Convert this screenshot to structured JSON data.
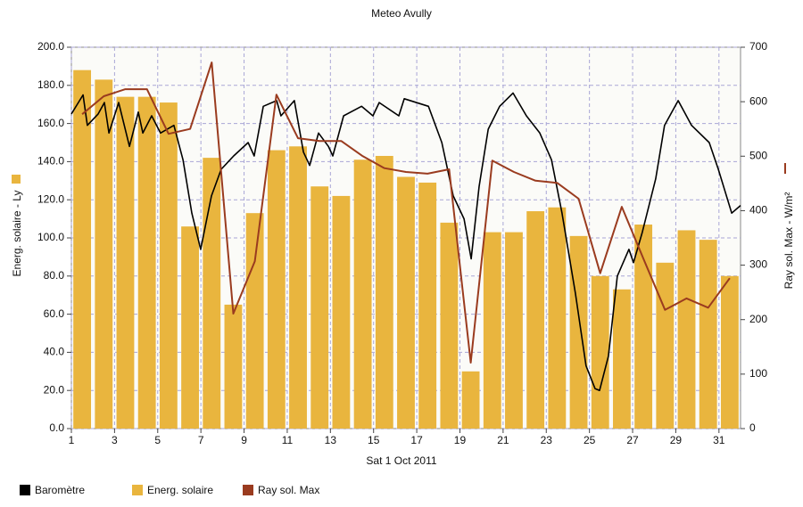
{
  "chart_data": {
    "type": "bar",
    "title": "Meteo  Avully",
    "x_label": "Sat 1 Oct 2011",
    "y_label": "Energ. solaire - Ly",
    "y2_label": "Ray sol. Max - W/m²",
    "xlim": [
      1,
      32
    ],
    "xticks": [
      1,
      3,
      5,
      7,
      9,
      11,
      13,
      15,
      17,
      19,
      21,
      23,
      25,
      27,
      29,
      31
    ],
    "ylim": [
      0,
      200
    ],
    "yticks": [
      {
        "value": 0,
        "label": "0.0"
      },
      {
        "value": 20,
        "label": "20.0"
      },
      {
        "value": 40,
        "label": "40.0"
      },
      {
        "value": 60,
        "label": "60.0"
      },
      {
        "value": 80,
        "label": "80.0"
      },
      {
        "value": 100,
        "label": "100.0"
      },
      {
        "value": 120,
        "label": "120.0"
      },
      {
        "value": 140,
        "label": "140.0"
      },
      {
        "value": 160,
        "label": "160.0"
      },
      {
        "value": 180,
        "label": "180.0"
      },
      {
        "value": 200,
        "label": "200.0"
      }
    ],
    "y2lim": [
      0,
      700
    ],
    "y2ticks": [
      0,
      100,
      200,
      300,
      400,
      500,
      600,
      700
    ],
    "grid": true,
    "series": [
      {
        "name": "Baromètre",
        "type": "line",
        "color": "#000000",
        "x": [
          1.0,
          1.54,
          1.74,
          2.24,
          2.53,
          2.74,
          3.19,
          3.69,
          4.1,
          4.31,
          4.72,
          5.13,
          5.75,
          6.17,
          6.58,
          6.99,
          7.49,
          7.94,
          8.52,
          9.19,
          9.47,
          9.89,
          10.51,
          10.71,
          11.33,
          11.75,
          12.04,
          12.45,
          12.91,
          13.11,
          13.61,
          14.44,
          14.97,
          15.26,
          16.17,
          16.42,
          17.54,
          18.16,
          18.69,
          19.19,
          19.52,
          19.89,
          20.31,
          20.84,
          21.46,
          22.08,
          22.7,
          23.24,
          23.73,
          24.35,
          24.84,
          25.26,
          25.47,
          25.88,
          26.29,
          26.83,
          27.04,
          27.45,
          28.07,
          28.48,
          29.11,
          29.73,
          30.55,
          30.97,
          31.59,
          32.0
        ],
        "values": [
          165,
          175,
          159,
          165,
          171,
          155,
          171,
          148,
          166,
          155,
          164,
          155,
          159,
          141,
          113,
          94,
          122,
          136,
          143,
          150,
          143,
          169,
          172,
          164,
          172,
          145,
          138,
          155,
          148,
          143,
          164,
          169,
          164,
          171,
          164,
          173,
          169,
          150,
          122,
          110,
          89,
          127,
          157,
          169,
          176,
          164,
          155,
          141,
          113,
          71,
          33,
          21,
          20,
          38,
          80,
          94,
          87,
          103,
          131,
          159,
          172,
          159,
          150,
          136,
          113,
          117
        ]
      },
      {
        "name": "Energ. solaire",
        "type": "bar",
        "color": "#e9b53e",
        "x": [
          1.5,
          2.5,
          3.5,
          4.5,
          5.5,
          6.5,
          7.5,
          8.5,
          9.5,
          10.5,
          11.5,
          12.5,
          13.5,
          14.5,
          15.5,
          16.5,
          17.5,
          18.5,
          19.5,
          20.5,
          21.5,
          22.5,
          23.5,
          24.5,
          25.5,
          26.5,
          27.5,
          28.5,
          29.5,
          30.5,
          31.5
        ],
        "values": [
          188,
          183,
          174,
          174,
          171,
          106,
          142,
          65,
          113,
          146,
          148,
          127,
          122,
          141,
          143,
          132,
          129,
          108,
          30,
          103,
          103,
          114,
          116,
          101,
          80,
          73,
          107,
          87,
          104,
          99,
          80
        ]
      },
      {
        "name": "Ray sol. Max",
        "type": "line",
        "axis": "y2",
        "color": "#9a3b1f",
        "x": [
          1.5,
          2.5,
          3.5,
          4.5,
          5.5,
          6.5,
          7.5,
          8.5,
          9.5,
          10.5,
          11.5,
          12.5,
          13.5,
          14.5,
          15.5,
          16.5,
          17.5,
          18.5,
          19.5,
          20.5,
          21.5,
          22.5,
          23.5,
          24.5,
          25.5,
          26.5,
          27.5,
          28.5,
          29.5,
          30.5,
          31.5
        ],
        "values": [
          577,
          610,
          623,
          623,
          541,
          550,
          672,
          211,
          307,
          613,
          533,
          528,
          528,
          500,
          478,
          471,
          468,
          476,
          121,
          492,
          471,
          455,
          451,
          422,
          285,
          407,
          312,
          218,
          239,
          222,
          276
        ]
      }
    ]
  }
}
